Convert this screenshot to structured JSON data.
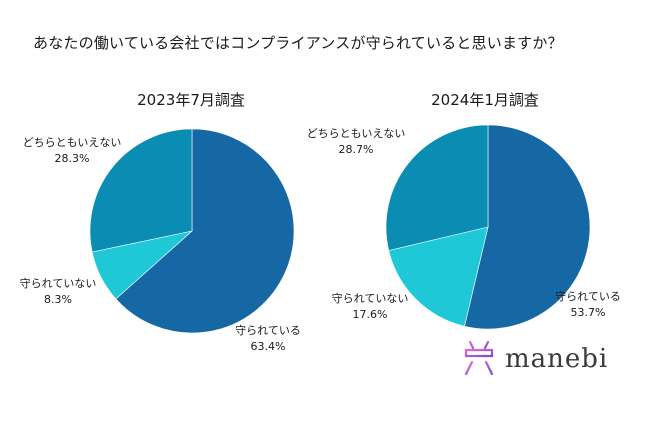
{
  "title": "あなたの働いている会社ではコンプライアンスが守られていると思いますか？",
  "logo": {
    "text": "manebi"
  },
  "chart_data": [
    {
      "type": "pie",
      "title": "2023年7月調査",
      "slices": [
        {
          "label": "守られている",
          "value": 63.4,
          "display": "63.4%",
          "color": "#1668a4"
        },
        {
          "label": "守られていない",
          "value": 8.3,
          "display": "8.3%",
          "color": "#1ec8d6"
        },
        {
          "label": "どちらともいえない",
          "value": 28.3,
          "display": "28.3%",
          "color": "#0b8db3"
        }
      ]
    },
    {
      "type": "pie",
      "title": "2024年1月調査",
      "slices": [
        {
          "label": "守られている",
          "value": 53.7,
          "display": "53.7%",
          "color": "#1668a4"
        },
        {
          "label": "守られていない",
          "value": 17.6,
          "display": "17.6%",
          "color": "#1ec8d6"
        },
        {
          "label": "どちらともいえない",
          "value": 28.7,
          "display": "28.7%",
          "color": "#0b8db3"
        }
      ]
    }
  ]
}
